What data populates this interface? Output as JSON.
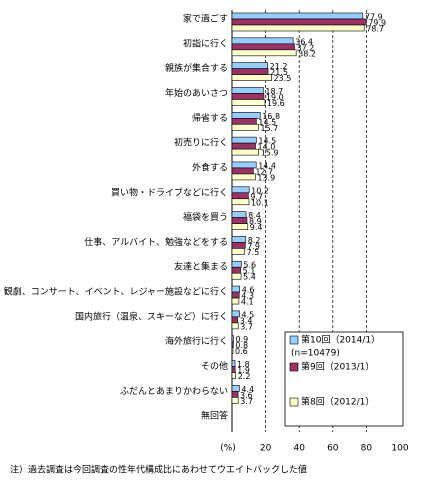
{
  "chart_data": {
    "type": "hbar",
    "categories": [
      "家で過ごす",
      "初詣に行く",
      "親族が集合する",
      "年始のあいさつ",
      "帰省する",
      "初売りに行く",
      "外食する",
      "買い物・ドライブなどに行く",
      "福袋を買う",
      "仕事、アルバイト、勉強などをする",
      "友達と集まる",
      "映画・観劇、コンサート、イベント、レジャー施設などに行く",
      "国内旅行（温泉、スキーなど）に行く",
      "海外旅行に行く",
      "その他",
      "ふだんとあまりかわらない",
      "無回答"
    ],
    "series": [
      {
        "name": "第10回（2014/1）",
        "color": "#99ccff",
        "values": [
          77.9,
          36.4,
          21.2,
          18.7,
          16.8,
          14.5,
          14.4,
          10.2,
          8.4,
          8.2,
          5.6,
          4.6,
          4.5,
          0.9,
          1.8,
          4.4,
          null
        ],
        "value_labels": [
          "77.9",
          "36.4",
          "21.2",
          "18.7",
          "16.8",
          "14.5",
          "14.4",
          "10.2",
          "8.4",
          "8.2",
          "5.6",
          "4.6",
          "4.5",
          "0.9",
          "1.8",
          "4.4",
          null
        ]
      },
      {
        "name": "第9回（2013/1）",
        "color": "#993366",
        "values": [
          79.9,
          37.2,
          21.5,
          19.0,
          14.5,
          14.0,
          12.7,
          9.7,
          8.9,
          7.9,
          5.1,
          4.3,
          3.4,
          0.8,
          1.9,
          3.6,
          null
        ],
        "value_labels": [
          "79.9",
          "37.2",
          "21.5",
          "19.0",
          "14.5",
          "14.0",
          "12.7",
          "9.7",
          "8.9",
          "7.9",
          "5.1",
          "4.3",
          "3.4",
          "0.8",
          "1.9",
          "3.6",
          null
        ]
      },
      {
        "name": "第8回（2012/1）",
        "color": "#ffffcc",
        "values": [
          78.7,
          38.2,
          23.5,
          19.6,
          15.7,
          15.9,
          13.9,
          10.1,
          9.4,
          7.5,
          5.4,
          4.1,
          3.7,
          0.6,
          2.2,
          3.7,
          null
        ],
        "value_labels": [
          "78.7",
          "38.2",
          "23.5",
          "19.6",
          "15.7",
          "15.9",
          "13.9",
          "10.1",
          "9.4",
          "7.5",
          "5.4",
          "4.1",
          "3.7",
          "0.6",
          "2.2",
          "3.7",
          null
        ]
      }
    ],
    "legend_note": "(n=10479)",
    "x_unit_label": "(%)",
    "xlim": [
      0,
      100
    ],
    "xticks": [
      20,
      40,
      60,
      80,
      100
    ],
    "grid": true,
    "footnote": "注）過去調査は今回調査の性年代構成比にあわせてウエイトバックした値"
  }
}
